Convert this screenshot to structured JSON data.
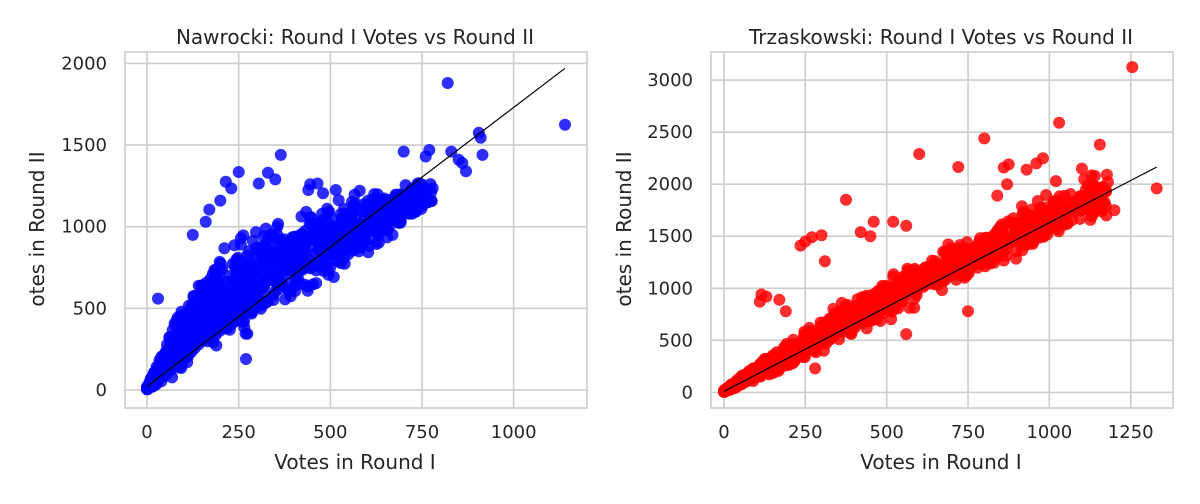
{
  "chart_data": [
    {
      "type": "scatter",
      "title": "Nawrocki: Round I Votes vs Round II",
      "xlabel": "Votes in Round I",
      "ylabel": "otes in Round II",
      "xlim": [
        -60,
        1200
      ],
      "ylim": [
        -110,
        2070
      ],
      "xticks": [
        0,
        250,
        500,
        750,
        1000
      ],
      "yticks": [
        0,
        500,
        1000,
        1500,
        2000
      ],
      "grid": true,
      "point_color": "#0000ff",
      "line_color": "#000000",
      "trend_line": {
        "x": [
          0,
          1140
        ],
        "y": [
          22,
          1970
        ]
      },
      "cloud": {
        "x_max": 780,
        "lower_edge": [
          [
            0,
            0
          ],
          [
            100,
            60
          ],
          [
            300,
            330
          ],
          [
            500,
            620
          ],
          [
            700,
            950
          ],
          [
            780,
            1080
          ]
        ],
        "upper_edge": [
          [
            0,
            20
          ],
          [
            50,
            300
          ],
          [
            100,
            600
          ],
          [
            200,
            900
          ],
          [
            300,
            1050
          ],
          [
            400,
            1150
          ],
          [
            500,
            1220
          ],
          [
            650,
            1300
          ],
          [
            780,
            1330
          ]
        ]
      },
      "outliers": [
        [
          820,
          1880
        ],
        [
          1140,
          1625
        ],
        [
          905,
          1575
        ],
        [
          910,
          1545
        ],
        [
          830,
          1460
        ],
        [
          915,
          1440
        ],
        [
          850,
          1410
        ],
        [
          860,
          1390
        ],
        [
          870,
          1340
        ],
        [
          700,
          1460
        ],
        [
          770,
          1470
        ],
        [
          760,
          1430
        ],
        [
          365,
          1440
        ],
        [
          330,
          1330
        ],
        [
          250,
          1335
        ],
        [
          350,
          1290
        ],
        [
          230,
          1235
        ],
        [
          215,
          1275
        ],
        [
          305,
          1265
        ],
        [
          465,
          1265
        ],
        [
          440,
          1225
        ],
        [
          480,
          1205
        ],
        [
          515,
          1225
        ],
        [
          445,
          1260
        ],
        [
          580,
          1220
        ],
        [
          620,
          1200
        ],
        [
          200,
          1160
        ],
        [
          160,
          1030
        ],
        [
          125,
          950
        ],
        [
          170,
          1105
        ],
        [
          270,
          190
        ],
        [
          30,
          560
        ]
      ]
    },
    {
      "type": "scatter",
      "title": "Trzaskowski: Round I Votes vs Round II",
      "xlabel": "Votes in Round I",
      "ylabel": "otes in Round II",
      "xlim": [
        -40,
        1380
      ],
      "ylim": [
        -150,
        3270
      ],
      "xticks": [
        0,
        250,
        500,
        750,
        1000,
        1250
      ],
      "yticks": [
        0,
        500,
        1000,
        1500,
        2000,
        2500,
        3000
      ],
      "grid": true,
      "point_color": "#ff0000",
      "line_color": "#000000",
      "trend_line": {
        "x": [
          0,
          1330
        ],
        "y": [
          10,
          2165
        ]
      },
      "cloud": {
        "x_max": 1180,
        "lower_edge": [
          [
            0,
            0
          ],
          [
            200,
            200
          ],
          [
            400,
            500
          ],
          [
            600,
            800
          ],
          [
            800,
            1100
          ],
          [
            1000,
            1400
          ],
          [
            1180,
            1650
          ]
        ],
        "upper_edge": [
          [
            0,
            20
          ],
          [
            100,
            300
          ],
          [
            200,
            500
          ],
          [
            300,
            780
          ],
          [
            500,
            1150
          ],
          [
            700,
            1500
          ],
          [
            900,
            1820
          ],
          [
            1100,
            2100
          ],
          [
            1180,
            2200
          ]
        ]
      },
      "outliers": [
        [
          1255,
          3125
        ],
        [
          1330,
          1960
        ],
        [
          1030,
          2590
        ],
        [
          1155,
          2380
        ],
        [
          800,
          2440
        ],
        [
          600,
          2290
        ],
        [
          720,
          2165
        ],
        [
          860,
          2160
        ],
        [
          875,
          2190
        ],
        [
          930,
          2140
        ],
        [
          1100,
          2150
        ],
        [
          1140,
          2080
        ],
        [
          1180,
          2020
        ],
        [
          1120,
          1850
        ],
        [
          1175,
          1700
        ],
        [
          1200,
          1750
        ],
        [
          375,
          1850
        ],
        [
          460,
          1640
        ],
        [
          420,
          1540
        ],
        [
          450,
          1500
        ],
        [
          300,
          1510
        ],
        [
          270,
          1490
        ],
        [
          235,
          1410
        ],
        [
          250,
          1450
        ],
        [
          310,
          1260
        ],
        [
          520,
          1640
        ],
        [
          560,
          1600
        ],
        [
          840,
          1890
        ],
        [
          870,
          2000
        ],
        [
          980,
          2250
        ],
        [
          960,
          2200
        ],
        [
          1020,
          2030
        ],
        [
          560,
          560
        ],
        [
          280,
          230
        ],
        [
          750,
          780
        ],
        [
          190,
          780
        ],
        [
          170,
          890
        ],
        [
          115,
          940
        ],
        [
          110,
          870
        ],
        [
          130,
          920
        ]
      ]
    }
  ]
}
